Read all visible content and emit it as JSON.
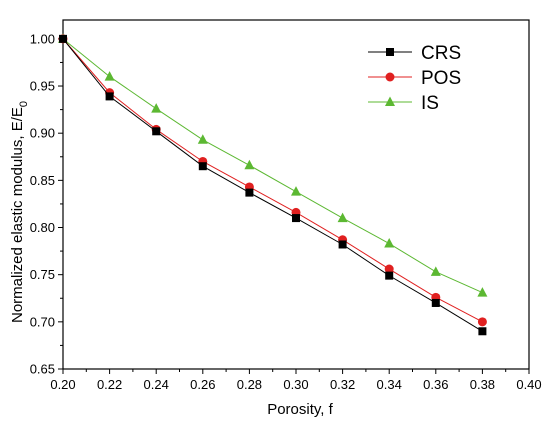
{
  "chart_data": {
    "type": "line",
    "title": "",
    "xlabel": "Porosity, f",
    "ylabel_main": "Normalized elastic modulus, E/E",
    "ylabel_sub": "0",
    "xlim": [
      0.2,
      0.4
    ],
    "ylim": [
      0.65,
      1.02
    ],
    "xticks": [
      "0.20",
      "0.22",
      "0.24",
      "0.26",
      "0.28",
      "0.30",
      "0.32",
      "0.34",
      "0.36",
      "0.38",
      "0.40"
    ],
    "yticks": [
      "0.65",
      "0.70",
      "0.75",
      "0.80",
      "0.85",
      "0.90",
      "0.95",
      "1.00"
    ],
    "grid": false,
    "legend_position": "top-right",
    "x": [
      0.2,
      0.22,
      0.24,
      0.26,
      0.28,
      0.3,
      0.32,
      0.34,
      0.36,
      0.38
    ],
    "series": [
      {
        "name": "CRS",
        "color": "#000000",
        "marker": "square",
        "values": [
          1.0,
          0.939,
          0.902,
          0.865,
          0.837,
          0.81,
          0.782,
          0.749,
          0.72,
          0.69
        ]
      },
      {
        "name": "POS",
        "color": "#e02020",
        "marker": "circle",
        "values": [
          1.0,
          0.943,
          0.904,
          0.87,
          0.843,
          0.816,
          0.787,
          0.756,
          0.726,
          0.7
        ]
      },
      {
        "name": "IS",
        "color": "#5cb832",
        "marker": "triangle",
        "values": [
          1.0,
          0.96,
          0.926,
          0.893,
          0.866,
          0.838,
          0.81,
          0.783,
          0.753,
          0.731
        ]
      }
    ]
  }
}
